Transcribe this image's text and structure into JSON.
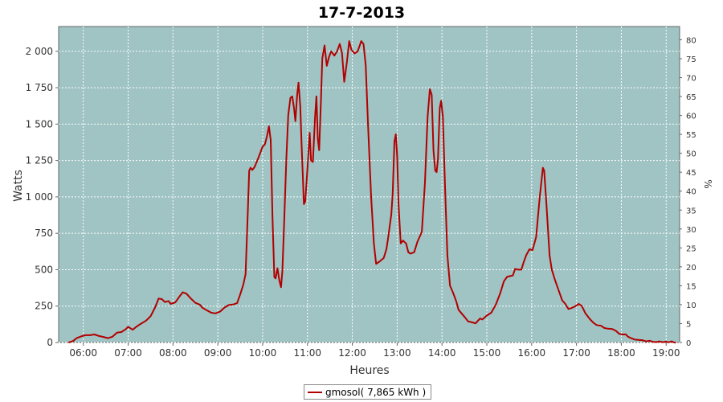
{
  "chart_data": {
    "type": "line",
    "title": "17-7-2013",
    "xlabel": "Heures",
    "ylabel": "Watts",
    "ylabel_right": "%",
    "xlim": [
      5.45,
      19.3
    ],
    "ylim": [
      0,
      2170
    ],
    "ylim_right": [
      0,
      83.5
    ],
    "grid": true,
    "plot_background": "#9fc4c3",
    "line_color": "#b20000",
    "x_ticks": [
      {
        "v": 6,
        "label": "06:00"
      },
      {
        "v": 7,
        "label": "07:00"
      },
      {
        "v": 8,
        "label": "08:00"
      },
      {
        "v": 9,
        "label": "09:00"
      },
      {
        "v": 10,
        "label": "10:00"
      },
      {
        "v": 11,
        "label": "11:00"
      },
      {
        "v": 12,
        "label": "12:00"
      },
      {
        "v": 13,
        "label": "13:00"
      },
      {
        "v": 14,
        "label": "14:00"
      },
      {
        "v": 15,
        "label": "15:00"
      },
      {
        "v": 16,
        "label": "16:00"
      },
      {
        "v": 17,
        "label": "17:00"
      },
      {
        "v": 18,
        "label": "18:00"
      },
      {
        "v": 19,
        "label": "19:00"
      }
    ],
    "y_ticks": [
      {
        "v": 0,
        "label": "0"
      },
      {
        "v": 250,
        "label": "250"
      },
      {
        "v": 500,
        "label": "500"
      },
      {
        "v": 750,
        "label": "750"
      },
      {
        "v": 1000,
        "label": "1 000"
      },
      {
        "v": 1250,
        "label": "1 250"
      },
      {
        "v": 1500,
        "label": "1 500"
      },
      {
        "v": 1750,
        "label": "1 750"
      },
      {
        "v": 2000,
        "label": "2 000"
      }
    ],
    "y_ticks_right": [
      {
        "v": 0,
        "label": "0"
      },
      {
        "v": 5,
        "label": "5"
      },
      {
        "v": 10,
        "label": "10"
      },
      {
        "v": 15,
        "label": "15"
      },
      {
        "v": 20,
        "label": "20"
      },
      {
        "v": 25,
        "label": "25"
      },
      {
        "v": 30,
        "label": "30"
      },
      {
        "v": 35,
        "label": "35"
      },
      {
        "v": 40,
        "label": "40"
      },
      {
        "v": 45,
        "label": "45"
      },
      {
        "v": 50,
        "label": "50"
      },
      {
        "v": 55,
        "label": "55"
      },
      {
        "v": 60,
        "label": "60"
      },
      {
        "v": 65,
        "label": "65"
      },
      {
        "v": 70,
        "label": "70"
      },
      {
        "v": 75,
        "label": "75"
      },
      {
        "v": 80,
        "label": "80"
      }
    ],
    "series": [
      {
        "name": "gmosol( 7,865 kWh )",
        "points": [
          [
            5.67,
            0
          ],
          [
            5.77,
            10
          ],
          [
            5.85,
            30
          ],
          [
            5.95,
            42
          ],
          [
            6.05,
            50
          ],
          [
            6.15,
            50
          ],
          [
            6.25,
            55
          ],
          [
            6.35,
            45
          ],
          [
            6.45,
            38
          ],
          [
            6.55,
            30
          ],
          [
            6.65,
            40
          ],
          [
            6.75,
            68
          ],
          [
            6.85,
            72
          ],
          [
            6.95,
            92
          ],
          [
            7.0,
            108
          ],
          [
            7.1,
            88
          ],
          [
            7.2,
            112
          ],
          [
            7.3,
            132
          ],
          [
            7.4,
            150
          ],
          [
            7.5,
            180
          ],
          [
            7.6,
            240
          ],
          [
            7.68,
            302
          ],
          [
            7.75,
            298
          ],
          [
            7.82,
            278
          ],
          [
            7.9,
            285
          ],
          [
            7.95,
            265
          ],
          [
            8.05,
            275
          ],
          [
            8.15,
            318
          ],
          [
            8.22,
            345
          ],
          [
            8.3,
            335
          ],
          [
            8.4,
            302
          ],
          [
            8.5,
            272
          ],
          [
            8.6,
            260
          ],
          [
            8.65,
            240
          ],
          [
            8.75,
            222
          ],
          [
            8.85,
            205
          ],
          [
            8.95,
            200
          ],
          [
            9.05,
            212
          ],
          [
            9.15,
            240
          ],
          [
            9.25,
            258
          ],
          [
            9.35,
            262
          ],
          [
            9.43,
            270
          ],
          [
            9.5,
            330
          ],
          [
            9.57,
            398
          ],
          [
            9.62,
            470
          ],
          [
            9.67,
            900
          ],
          [
            9.7,
            1180
          ],
          [
            9.73,
            1200
          ],
          [
            9.77,
            1185
          ],
          [
            9.82,
            1205
          ],
          [
            9.9,
            1265
          ],
          [
            10.0,
            1345
          ],
          [
            10.05,
            1360
          ],
          [
            10.1,
            1420
          ],
          [
            10.14,
            1485
          ],
          [
            10.18,
            1390
          ],
          [
            10.22,
            860
          ],
          [
            10.26,
            450
          ],
          [
            10.29,
            440
          ],
          [
            10.33,
            510
          ],
          [
            10.37,
            430
          ],
          [
            10.41,
            380
          ],
          [
            10.44,
            490
          ],
          [
            10.48,
            820
          ],
          [
            10.53,
            1270
          ],
          [
            10.57,
            1560
          ],
          [
            10.62,
            1680
          ],
          [
            10.66,
            1690
          ],
          [
            10.7,
            1610
          ],
          [
            10.73,
            1520
          ],
          [
            10.77,
            1700
          ],
          [
            10.8,
            1785
          ],
          [
            10.84,
            1620
          ],
          [
            10.87,
            1350
          ],
          [
            10.92,
            950
          ],
          [
            10.95,
            970
          ],
          [
            11.0,
            1200
          ],
          [
            11.05,
            1440
          ],
          [
            11.08,
            1250
          ],
          [
            11.12,
            1240
          ],
          [
            11.17,
            1550
          ],
          [
            11.2,
            1690
          ],
          [
            11.23,
            1400
          ],
          [
            11.26,
            1320
          ],
          [
            11.3,
            1660
          ],
          [
            11.33,
            1950
          ],
          [
            11.38,
            2040
          ],
          [
            11.43,
            1900
          ],
          [
            11.48,
            1960
          ],
          [
            11.53,
            2000
          ],
          [
            11.6,
            1970
          ],
          [
            11.66,
            2000
          ],
          [
            11.72,
            2050
          ],
          [
            11.77,
            1990
          ],
          [
            11.82,
            1790
          ],
          [
            11.88,
            1930
          ],
          [
            11.93,
            2070
          ],
          [
            11.98,
            2010
          ],
          [
            12.05,
            1985
          ],
          [
            12.12,
            2000
          ],
          [
            12.2,
            2070
          ],
          [
            12.25,
            2050
          ],
          [
            12.3,
            1900
          ],
          [
            12.35,
            1500
          ],
          [
            12.42,
            1000
          ],
          [
            12.48,
            680
          ],
          [
            12.53,
            540
          ],
          [
            12.6,
            555
          ],
          [
            12.7,
            580
          ],
          [
            12.76,
            640
          ],
          [
            12.8,
            720
          ],
          [
            12.87,
            880
          ],
          [
            12.9,
            1020
          ],
          [
            12.94,
            1380
          ],
          [
            12.97,
            1430
          ],
          [
            13.0,
            1280
          ],
          [
            13.03,
            950
          ],
          [
            13.08,
            680
          ],
          [
            13.13,
            700
          ],
          [
            13.2,
            680
          ],
          [
            13.25,
            620
          ],
          [
            13.3,
            610
          ],
          [
            13.38,
            620
          ],
          [
            13.45,
            690
          ],
          [
            13.55,
            760
          ],
          [
            13.62,
            1100
          ],
          [
            13.68,
            1550
          ],
          [
            13.73,
            1740
          ],
          [
            13.77,
            1700
          ],
          [
            13.81,
            1320
          ],
          [
            13.85,
            1180
          ],
          [
            13.88,
            1170
          ],
          [
            13.91,
            1260
          ],
          [
            13.95,
            1610
          ],
          [
            13.98,
            1660
          ],
          [
            14.02,
            1550
          ],
          [
            14.07,
            1050
          ],
          [
            14.12,
            600
          ],
          [
            14.18,
            390
          ],
          [
            14.25,
            340
          ],
          [
            14.32,
            280
          ],
          [
            14.37,
            225
          ],
          [
            14.45,
            195
          ],
          [
            14.52,
            170
          ],
          [
            14.58,
            145
          ],
          [
            14.65,
            140
          ],
          [
            14.75,
            132
          ],
          [
            14.85,
            165
          ],
          [
            14.9,
            158
          ],
          [
            15.0,
            185
          ],
          [
            15.1,
            205
          ],
          [
            15.2,
            260
          ],
          [
            15.3,
            340
          ],
          [
            15.38,
            420
          ],
          [
            15.45,
            450
          ],
          [
            15.5,
            455
          ],
          [
            15.58,
            460
          ],
          [
            15.63,
            505
          ],
          [
            15.7,
            500
          ],
          [
            15.77,
            500
          ],
          [
            15.82,
            550
          ],
          [
            15.88,
            600
          ],
          [
            15.95,
            640
          ],
          [
            16.02,
            635
          ],
          [
            16.1,
            725
          ],
          [
            16.18,
            1000
          ],
          [
            16.25,
            1200
          ],
          [
            16.28,
            1180
          ],
          [
            16.33,
            950
          ],
          [
            16.4,
            600
          ],
          [
            16.45,
            500
          ],
          [
            16.52,
            430
          ],
          [
            16.6,
            360
          ],
          [
            16.68,
            290
          ],
          [
            16.75,
            265
          ],
          [
            16.82,
            230
          ],
          [
            16.9,
            238
          ],
          [
            16.98,
            250
          ],
          [
            17.05,
            265
          ],
          [
            17.12,
            250
          ],
          [
            17.2,
            200
          ],
          [
            17.3,
            160
          ],
          [
            17.38,
            135
          ],
          [
            17.45,
            120
          ],
          [
            17.55,
            115
          ],
          [
            17.62,
            100
          ],
          [
            17.7,
            95
          ],
          [
            17.8,
            92
          ],
          [
            17.88,
            80
          ],
          [
            17.95,
            60
          ],
          [
            18.02,
            55
          ],
          [
            18.1,
            56
          ],
          [
            18.15,
            40
          ],
          [
            18.22,
            30
          ],
          [
            18.3,
            20
          ],
          [
            18.38,
            18
          ],
          [
            18.48,
            15
          ],
          [
            18.55,
            8
          ],
          [
            18.63,
            12
          ],
          [
            18.7,
            5
          ],
          [
            18.78,
            3
          ],
          [
            18.85,
            8
          ],
          [
            18.92,
            2
          ],
          [
            19.0,
            6
          ],
          [
            19.05,
            1
          ],
          [
            19.12,
            8
          ],
          [
            19.18,
            0
          ],
          [
            19.22,
            0
          ]
        ]
      }
    ]
  },
  "legend": {
    "label": "gmosol( 7,865 kWh )"
  }
}
